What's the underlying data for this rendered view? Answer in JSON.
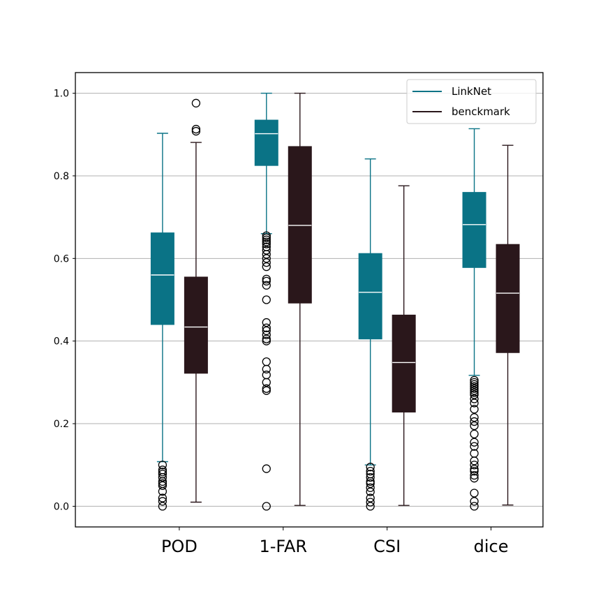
{
  "chart_data": {
    "type": "boxplot",
    "categories": [
      "POD",
      "1-FAR",
      "CSI",
      "dice"
    ],
    "ylim": [
      -0.05,
      1.05
    ],
    "yticks": [
      "0.0",
      "0.2",
      "0.4",
      "0.6",
      "0.8",
      "1.0"
    ],
    "grid": "horizontal",
    "legend_position": "top-right",
    "series": [
      {
        "name": "LinkNet",
        "color": "#0a7386",
        "boxes": [
          {
            "whisker_low": 0.108,
            "q1": 0.44,
            "median": 0.56,
            "q3": 0.662,
            "whisker_high": 0.903,
            "fliers": [
              0.0,
              0.012,
              0.02,
              0.036,
              0.05,
              0.055,
              0.06,
              0.07,
              0.078,
              0.083,
              0.088,
              0.1
            ]
          },
          {
            "whisker_low": 0.66,
            "q1": 0.825,
            "median": 0.902,
            "q3": 0.935,
            "whisker_high": 1.0,
            "fliers": [
              0.0,
              0.091,
              0.28,
              0.285,
              0.3,
              0.318,
              0.332,
              0.35,
              0.4,
              0.405,
              0.415,
              0.425,
              0.432,
              0.445,
              0.5,
              0.535,
              0.545,
              0.55,
              0.58,
              0.59,
              0.6,
              0.61,
              0.62,
              0.628,
              0.635,
              0.64,
              0.645,
              0.65,
              0.655
            ]
          },
          {
            "whisker_low": 0.1,
            "q1": 0.405,
            "median": 0.518,
            "q3": 0.612,
            "whisker_high": 0.841,
            "fliers": [
              0.0,
              0.01,
              0.02,
              0.035,
              0.045,
              0.055,
              0.06,
              0.07,
              0.078,
              0.085,
              0.095
            ]
          },
          {
            "whisker_low": 0.317,
            "q1": 0.578,
            "median": 0.682,
            "q3": 0.76,
            "whisker_high": 0.914,
            "fliers": [
              0.0,
              0.012,
              0.032,
              0.068,
              0.075,
              0.085,
              0.09,
              0.1,
              0.11,
              0.128,
              0.145,
              0.155,
              0.175,
              0.195,
              0.205,
              0.215,
              0.235,
              0.25,
              0.26,
              0.27,
              0.275,
              0.28,
              0.285,
              0.29,
              0.295,
              0.3,
              0.305
            ]
          }
        ]
      },
      {
        "name": "benckmark",
        "color": "#2a171b",
        "boxes": [
          {
            "whisker_low": 0.01,
            "q1": 0.322,
            "median": 0.434,
            "q3": 0.555,
            "whisker_high": 0.881,
            "fliers": [
              0.908,
              0.913,
              0.976
            ]
          },
          {
            "whisker_low": 0.002,
            "q1": 0.492,
            "median": 0.68,
            "q3": 0.871,
            "whisker_high": 1.0,
            "fliers": []
          },
          {
            "whisker_low": 0.002,
            "q1": 0.228,
            "median": 0.348,
            "q3": 0.463,
            "whisker_high": 0.776,
            "fliers": []
          },
          {
            "whisker_low": 0.003,
            "q1": 0.372,
            "median": 0.516,
            "q3": 0.634,
            "whisker_high": 0.874,
            "fliers": []
          }
        ]
      }
    ]
  }
}
